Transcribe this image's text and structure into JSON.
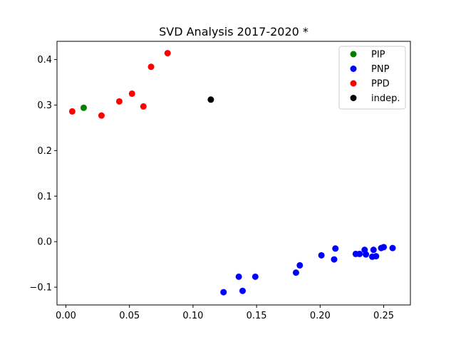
{
  "chart_data": {
    "type": "scatter",
    "title": "SVD Analysis 2017-2020 *",
    "xlabel": "",
    "ylabel": "",
    "xlim": [
      -0.007,
      0.271
    ],
    "ylim": [
      -0.139,
      0.44
    ],
    "xticks": [
      0.0,
      0.05,
      0.1,
      0.15,
      0.2,
      0.25
    ],
    "xtick_labels": [
      "0.00",
      "0.05",
      "0.10",
      "0.15",
      "0.20",
      "0.25"
    ],
    "yticks": [
      -0.1,
      0.0,
      0.1,
      0.2,
      0.3,
      0.4
    ],
    "ytick_labels": [
      "−0.1",
      "0.0",
      "0.1",
      "0.2",
      "0.3",
      "0.4"
    ],
    "grid": false,
    "legend_position": "top-right",
    "series": [
      {
        "name": "PIP",
        "color": "#008000",
        "points": [
          [
            0.014,
            0.294
          ]
        ]
      },
      {
        "name": "PNP",
        "color": "#0000ff",
        "points": [
          [
            0.124,
            -0.111
          ],
          [
            0.136,
            -0.077
          ],
          [
            0.139,
            -0.108
          ],
          [
            0.149,
            -0.077
          ],
          [
            0.181,
            -0.068
          ],
          [
            0.184,
            -0.052
          ],
          [
            0.201,
            -0.03
          ],
          [
            0.211,
            -0.039
          ],
          [
            0.212,
            -0.015
          ],
          [
            0.228,
            -0.027
          ],
          [
            0.231,
            -0.027
          ],
          [
            0.235,
            -0.018
          ],
          [
            0.236,
            -0.028
          ],
          [
            0.241,
            -0.033
          ],
          [
            0.242,
            -0.018
          ],
          [
            0.244,
            -0.032
          ],
          [
            0.248,
            -0.014
          ],
          [
            0.25,
            -0.012
          ],
          [
            0.257,
            -0.014
          ]
        ]
      },
      {
        "name": "PPD",
        "color": "#ff0000",
        "points": [
          [
            0.005,
            0.286
          ],
          [
            0.028,
            0.277
          ],
          [
            0.042,
            0.308
          ],
          [
            0.052,
            0.325
          ],
          [
            0.061,
            0.297
          ],
          [
            0.067,
            0.384
          ],
          [
            0.08,
            0.414
          ]
        ]
      },
      {
        "name": "indep.",
        "color": "#000000",
        "points": [
          [
            0.114,
            0.312
          ]
        ]
      }
    ]
  }
}
